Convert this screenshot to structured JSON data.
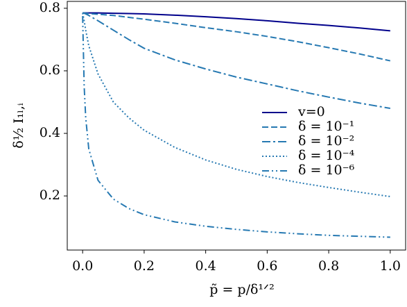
{
  "chart_data": {
    "type": "line",
    "xlabel": "p̃ = p/δ¹ᐟ²",
    "ylabel": "δ½ I₁ₗ,ᵢ",
    "x": [
      0,
      0.005,
      0.01,
      0.02,
      0.05,
      0.1,
      0.15,
      0.2,
      0.3,
      0.4,
      0.5,
      0.6,
      0.7,
      0.8,
      0.9,
      1.0
    ],
    "series": [
      {
        "name": "v=0",
        "color": "#00008b",
        "linestyle": "solid",
        "values": [
          0.785,
          0.785,
          0.785,
          0.785,
          0.785,
          0.784,
          0.783,
          0.782,
          0.778,
          0.773,
          0.767,
          0.76,
          0.752,
          0.745,
          0.737,
          0.728
        ]
      },
      {
        "name": "δ = 10⁻¹",
        "color": "#2679b2",
        "linestyle": "dashed",
        "values": [
          0.785,
          0.785,
          0.784,
          0.783,
          0.781,
          0.777,
          0.771,
          0.765,
          0.752,
          0.738,
          0.725,
          0.71,
          0.693,
          0.674,
          0.654,
          0.632
        ]
      },
      {
        "name": "δ = 10⁻²",
        "color": "#2679b2",
        "linestyle": "dashdot",
        "values": [
          0.785,
          0.784,
          0.782,
          0.777,
          0.76,
          0.73,
          0.7,
          0.672,
          0.635,
          0.606,
          0.58,
          0.558,
          0.536,
          0.516,
          0.497,
          0.48
        ]
      },
      {
        "name": "δ = 10⁻⁴",
        "color": "#2679b2",
        "linestyle": "dotted",
        "values": [
          0.785,
          0.76,
          0.73,
          0.68,
          0.59,
          0.5,
          0.45,
          0.41,
          0.355,
          0.315,
          0.285,
          0.262,
          0.243,
          0.227,
          0.212,
          0.198
        ]
      },
      {
        "name": "δ = 10⁻⁶",
        "color": "#2679b2",
        "linestyle": "dashdotdot",
        "values": [
          0.775,
          0.55,
          0.45,
          0.35,
          0.25,
          0.19,
          0.16,
          0.14,
          0.117,
          0.103,
          0.093,
          0.085,
          0.079,
          0.074,
          0.071,
          0.068
        ]
      }
    ],
    "xlim": [
      -0.05,
      1.05
    ],
    "xticks": [
      {
        "value": 0,
        "label": "0.0"
      },
      0.2,
      0.4,
      0.6,
      0.8,
      {
        "value": 1,
        "label": "1.0"
      }
    ],
    "ylim": [
      0.027,
      0.822
    ],
    "yticks": [
      0.2,
      0.4,
      0.6,
      0.8
    ],
    "grid": false,
    "legend": "center right"
  }
}
